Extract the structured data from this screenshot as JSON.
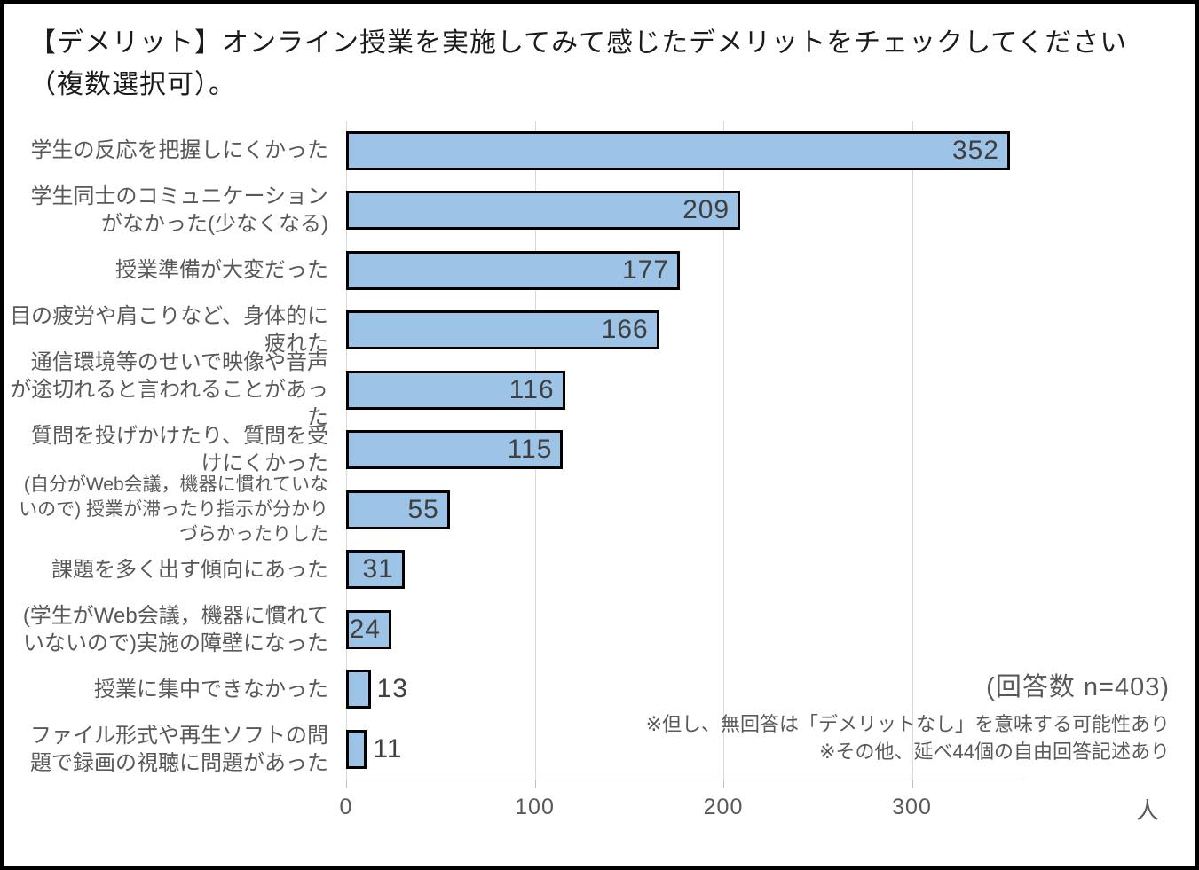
{
  "title": "【デメリット】オンライン授業を実施してみて感じたデメリットをチェックしてください（複数選択可）。",
  "chart_data": {
    "type": "bar",
    "orientation": "horizontal",
    "title": "【デメリット】オンライン授業を実施してみて感じたデメリットをチェックしてください（複数選択可）。",
    "categories": [
      "学生の反応を把握しにくかった",
      "学生同士のコミュニケーションがなかった(少なくなる)",
      "授業準備が大変だった",
      "目の疲労や肩こりなど、身体的に疲れた",
      "通信環境等のせいで映像や音声が途切れると言われることがあった",
      "質問を投げかけたり、質問を受けにくかった",
      "(自分がWeb会議，機器に慣れていないので) 授業が滞ったり指示が分かりづらかったりした",
      "課題を多く出す傾向にあった",
      "(学生がWeb会議，機器に慣れていないので)実施の障壁になった",
      "授業に集中できなかった",
      "ファイル形式や再生ソフトの問題で録画の視聴に問題があった"
    ],
    "values": [
      352,
      209,
      177,
      166,
      116,
      115,
      55,
      31,
      24,
      13,
      11
    ],
    "x_ticks": [
      0,
      100,
      200,
      300
    ],
    "xlim": [
      0,
      360
    ],
    "x_unit": "人",
    "grid": true,
    "legend": "none",
    "bar_color": "#9dc3e6",
    "bar_border_color": "#000000",
    "value_label_color": "#3f3f3f"
  },
  "annotations": {
    "respondents": "(回答数 n=403)",
    "note1": "※但し、無回答は「デメリットなし」を意味する可能性あり",
    "note2": "※その他、延べ44個の自由回答記述あり"
  }
}
